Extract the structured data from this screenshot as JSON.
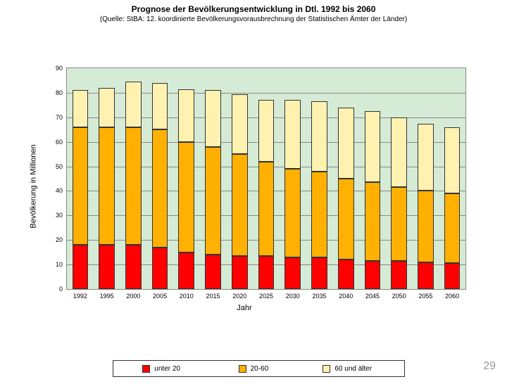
{
  "title": "Prognose der Bevölkerungsentwicklung in Dtl. 1992 bis 2060",
  "subtitle": "(Quelle: StBA: 12. koordinierte Bevölkerungsvorausbrechnung der Statistischen Ämter der Länder)",
  "ylabel": "Bevölkerung in Millionen",
  "xlabel": "Jahr",
  "page_number": "29",
  "chart": {
    "type": "stacked-bar",
    "categories": [
      "1992",
      "1995",
      "2000",
      "2005",
      "2010",
      "2015",
      "2020",
      "2025",
      "2030",
      "2035",
      "2040",
      "2045",
      "2050",
      "2055",
      "2060"
    ],
    "series": [
      {
        "name": "unter 20",
        "color": "#ff0000",
        "values": [
          18,
          18,
          18,
          17,
          15,
          14,
          13.5,
          13.5,
          13,
          13,
          12,
          11.5,
          11.5,
          11,
          10.5
        ]
      },
      {
        "name": "20-60",
        "color": "#ffb000",
        "values": [
          48,
          48,
          48,
          48,
          45,
          44,
          41.5,
          38.5,
          36,
          35,
          33,
          32,
          30,
          29,
          28.5
        ]
      },
      {
        "name": "60 und älter",
        "color": "#fff2b0",
        "values": [
          15,
          16,
          18.5,
          19,
          21.5,
          23,
          24.5,
          25,
          28,
          28.5,
          29,
          29,
          28.5,
          27.5,
          27
        ]
      }
    ],
    "ylim": [
      0,
      90
    ],
    "ytick_step": 10,
    "background_color": "#d6ebd6",
    "grid_color": "#888888"
  },
  "legend_spacing": [
    0.1,
    0.43,
    0.72
  ]
}
